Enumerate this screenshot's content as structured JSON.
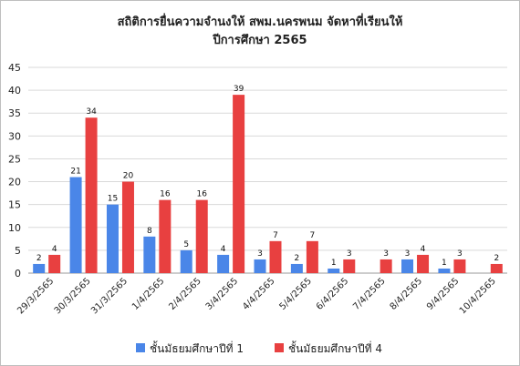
{
  "chart_data": {
    "type": "bar",
    "title_line1": "สถิติการยื่นความจำนงให้  สพม.นครพนม  จัดหาที่เรียนให้",
    "title_line2": "ปีการศึกษา  2565",
    "categories": [
      "29/3/2565",
      "30/3/2565",
      "31/3/2565",
      "1/4/2565",
      "2/4/2565",
      "3/4/2565",
      "4/4/2565",
      "5/4/2565",
      "6/4/2565",
      "7/4/2565",
      "8/4/2565",
      "9/4/2565",
      "10/4/2565"
    ],
    "series": [
      {
        "name": "ชั้นมัธยมศึกษาปีที่  1",
        "color": "#4a86e8",
        "values": [
          2,
          21,
          15,
          8,
          5,
          4,
          3,
          2,
          1,
          null,
          3,
          1,
          null
        ]
      },
      {
        "name": "ชั้นมัธยมศึกษาปีที่  4",
        "color": "#e84040",
        "values": [
          4,
          34,
          20,
          16,
          16,
          39,
          7,
          7,
          3,
          3,
          4,
          3,
          2
        ]
      }
    ],
    "yticks": [
      0,
      5,
      10,
      15,
      20,
      25,
      30,
      35,
      40,
      45
    ],
    "ylim": [
      0,
      45
    ],
    "grid": true,
    "legend": "bottom"
  }
}
